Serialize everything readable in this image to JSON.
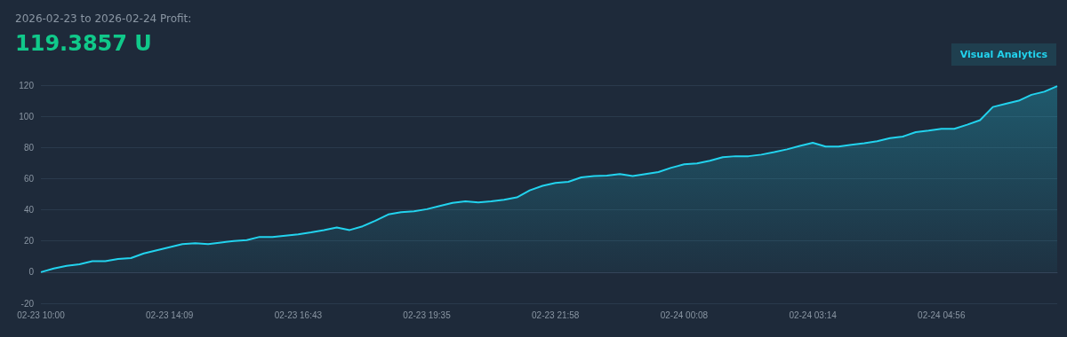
{
  "chart_data": {
    "type": "area",
    "title": "2026-02-23 to 2026-02-24 Profit:",
    "subtitle": "119.3857 U",
    "annotations": [
      "Visual Analytics"
    ],
    "categories": [
      "02-23 10:00",
      null,
      null,
      null,
      null,
      null,
      null,
      null,
      null,
      null,
      "02-23 14:09",
      null,
      null,
      null,
      null,
      null,
      null,
      null,
      null,
      null,
      "02-23 16:43",
      null,
      null,
      null,
      null,
      null,
      null,
      null,
      null,
      null,
      "02-23 19:35",
      null,
      null,
      null,
      null,
      null,
      null,
      null,
      null,
      null,
      "02-23 21:58",
      null,
      null,
      null,
      null,
      null,
      null,
      null,
      null,
      null,
      "02-24 00:08",
      null,
      null,
      null,
      null,
      null,
      null,
      null,
      null,
      null,
      "02-24 03:14",
      null,
      null,
      null,
      null,
      null,
      null,
      null,
      null,
      null,
      "02-24 04:56",
      null,
      null,
      null,
      null,
      null,
      null,
      null,
      null,
      null
    ],
    "series": [
      {
        "color": "#22d3ee",
        "values": [
          0,
          2.3,
          4,
          5,
          7,
          7,
          8.5,
          9,
          12,
          14,
          16,
          18,
          18.5,
          18,
          19,
          20,
          20.5,
          22.6,
          22.5,
          23.4,
          24.3,
          25.5,
          27,
          28.7,
          27,
          29.4,
          33,
          37,
          38.5,
          39,
          40.4,
          42.5,
          44.4,
          45.4,
          44.8,
          45.4,
          46.5,
          48,
          52.5,
          55.4,
          57.3,
          58,
          60.8,
          61.7,
          62,
          63,
          61.7,
          63,
          64.2,
          67,
          69.2,
          69.8,
          71.5,
          73.8,
          74.4,
          74.4,
          75.4,
          77,
          78.8,
          81,
          83,
          80.6,
          80.6,
          81.7,
          82.7,
          84,
          86,
          87,
          89.8,
          90.8,
          92,
          92,
          94.6,
          97.5,
          106,
          108,
          110,
          113.8,
          115.8,
          119.4
        ]
      }
    ],
    "ylim": [
      -20,
      120
    ],
    "yticks": [
      -20,
      0,
      20,
      40,
      60,
      80,
      100,
      120
    ],
    "grid": "y",
    "marker": "none",
    "line_style": "solid"
  }
}
